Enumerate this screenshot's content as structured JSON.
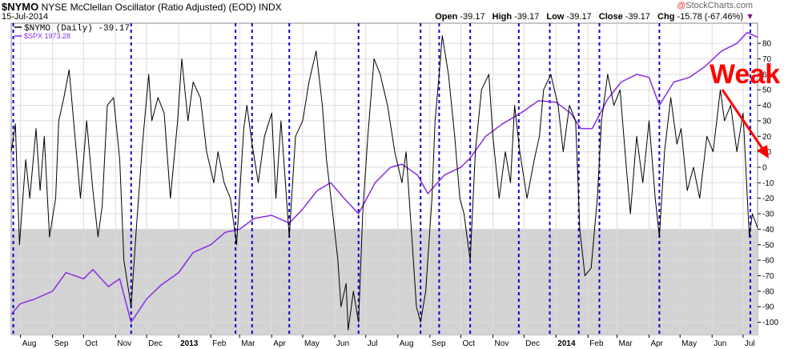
{
  "header": {
    "symbol": "$NYMO",
    "description": "NYSE McClellan Oscillator (Ratio Adjusted) (EOD)",
    "exchange": "INDX",
    "date": "15-Jul-2014",
    "open_label": "Open",
    "open": "-39.17",
    "high_label": "High",
    "high": "-39.17",
    "low_label": "Low",
    "low": "-39.17",
    "close_label": "Close",
    "close": "-39.17",
    "chg_label": "Chg",
    "chg": "-15.78 (-67.46%)",
    "watermark": "StockCharts.com",
    "watermark_prefix": "@"
  },
  "legend": {
    "nymo": "$NYMO (Daily) -39.17",
    "spx": "$SPX 1973.28"
  },
  "annotation": {
    "text": "Weak"
  },
  "colors": {
    "nymo_line": "#000000",
    "spx_line": "#8a2be2",
    "shade": "#d3d3d3",
    "cycle_marker": "#0000cd",
    "annotation": "#ff0000"
  },
  "chart_data": {
    "type": "line",
    "title": "NYSE McClellan Oscillator (Ratio Adjusted) (EOD)",
    "x_start": "2012-07-23",
    "x_end": "2014-07-15",
    "ylim": [
      -108,
      93
    ],
    "y_ticks": [
      -100,
      -90,
      -80,
      -70,
      -60,
      -50,
      -40,
      -30,
      -20,
      -10,
      0,
      10,
      20,
      30,
      40,
      50,
      60,
      70,
      80
    ],
    "shade_below": -40,
    "grid": true,
    "x_tick_labels": [
      {
        "date": "2012-08-01",
        "label": "Aug",
        "year": false
      },
      {
        "date": "2012-09-01",
        "label": "Sep",
        "year": false
      },
      {
        "date": "2012-10-01",
        "label": "Oct",
        "year": false
      },
      {
        "date": "2012-11-01",
        "label": "Nov",
        "year": false
      },
      {
        "date": "2012-12-01",
        "label": "Dec",
        "year": false
      },
      {
        "date": "2013-01-01",
        "label": "2013",
        "year": true
      },
      {
        "date": "2013-02-01",
        "label": "Feb",
        "year": false
      },
      {
        "date": "2013-03-01",
        "label": "Mar",
        "year": false
      },
      {
        "date": "2013-04-01",
        "label": "Apr",
        "year": false
      },
      {
        "date": "2013-05-01",
        "label": "May",
        "year": false
      },
      {
        "date": "2013-06-01",
        "label": "Jun",
        "year": false
      },
      {
        "date": "2013-07-01",
        "label": "Jul",
        "year": false
      },
      {
        "date": "2013-08-01",
        "label": "Aug",
        "year": false
      },
      {
        "date": "2013-09-01",
        "label": "Sep",
        "year": false
      },
      {
        "date": "2013-10-01",
        "label": "Oct",
        "year": false
      },
      {
        "date": "2013-11-01",
        "label": "Nov",
        "year": false
      },
      {
        "date": "2013-12-01",
        "label": "Dec",
        "year": false
      },
      {
        "date": "2014-01-01",
        "label": "2014",
        "year": true
      },
      {
        "date": "2014-02-01",
        "label": "Feb",
        "year": false
      },
      {
        "date": "2014-03-01",
        "label": "Mar",
        "year": false
      },
      {
        "date": "2014-04-01",
        "label": "Apr",
        "year": false
      },
      {
        "date": "2014-05-01",
        "label": "May",
        "year": false
      },
      {
        "date": "2014-06-01",
        "label": "Jun",
        "year": false
      },
      {
        "date": "2014-07-01",
        "label": "Jul",
        "year": false
      }
    ],
    "cycle_lines": [
      "2012-07-25",
      "2012-11-16",
      "2013-02-25",
      "2013-03-13",
      "2013-04-18",
      "2013-06-24",
      "2013-08-23",
      "2013-09-10",
      "2013-10-10",
      "2013-11-26",
      "2013-12-26",
      "2014-01-23",
      "2014-02-12",
      "2014-04-11",
      "2014-07-08"
    ],
    "series": [
      {
        "name": "$NYMO (Daily)",
        "axis": "left",
        "points": [
          [
            "2012-07-23",
            10
          ],
          [
            "2012-07-27",
            28
          ],
          [
            "2012-07-31",
            -50
          ],
          [
            "2012-08-06",
            5
          ],
          [
            "2012-08-10",
            -20
          ],
          [
            "2012-08-16",
            25
          ],
          [
            "2012-08-20",
            -15
          ],
          [
            "2012-08-24",
            20
          ],
          [
            "2012-08-29",
            -45
          ],
          [
            "2012-09-04",
            -20
          ],
          [
            "2012-09-07",
            30
          ],
          [
            "2012-09-12",
            45
          ],
          [
            "2012-09-17",
            63
          ],
          [
            "2012-09-24",
            10
          ],
          [
            "2012-09-28",
            -20
          ],
          [
            "2012-10-04",
            30
          ],
          [
            "2012-10-10",
            -15
          ],
          [
            "2012-10-15",
            -45
          ],
          [
            "2012-10-19",
            -25
          ],
          [
            "2012-10-24",
            40
          ],
          [
            "2012-10-30",
            45
          ],
          [
            "2012-11-05",
            5
          ],
          [
            "2012-11-09",
            -60
          ],
          [
            "2012-11-16",
            -90
          ],
          [
            "2012-11-21",
            -40
          ],
          [
            "2012-11-27",
            15
          ],
          [
            "2012-12-03",
            60
          ],
          [
            "2012-12-06",
            30
          ],
          [
            "2012-12-12",
            45
          ],
          [
            "2012-12-18",
            35
          ],
          [
            "2012-12-24",
            -20
          ],
          [
            "2012-12-31",
            30
          ],
          [
            "2013-01-04",
            70
          ],
          [
            "2013-01-10",
            30
          ],
          [
            "2013-01-15",
            55
          ],
          [
            "2013-01-22",
            45
          ],
          [
            "2013-01-28",
            10
          ],
          [
            "2013-02-04",
            -10
          ],
          [
            "2013-02-08",
            10
          ],
          [
            "2013-02-14",
            -10
          ],
          [
            "2013-02-20",
            -20
          ],
          [
            "2013-02-26",
            -50
          ],
          [
            "2013-03-05",
            25
          ],
          [
            "2013-03-08",
            40
          ],
          [
            "2013-03-13",
            15
          ],
          [
            "2013-03-19",
            -10
          ],
          [
            "2013-03-25",
            20
          ],
          [
            "2013-04-01",
            35
          ],
          [
            "2013-04-05",
            -20
          ],
          [
            "2013-04-10",
            30
          ],
          [
            "2013-04-18",
            -45
          ],
          [
            "2013-04-24",
            20
          ],
          [
            "2013-05-01",
            30
          ],
          [
            "2013-05-07",
            55
          ],
          [
            "2013-05-14",
            75
          ],
          [
            "2013-05-20",
            40
          ],
          [
            "2013-05-24",
            5
          ],
          [
            "2013-05-30",
            -30
          ],
          [
            "2013-06-04",
            -60
          ],
          [
            "2013-06-07",
            -90
          ],
          [
            "2013-06-12",
            -75
          ],
          [
            "2013-06-14",
            -105
          ],
          [
            "2013-06-19",
            -80
          ],
          [
            "2013-06-24",
            -100
          ],
          [
            "2013-06-28",
            -30
          ],
          [
            "2013-07-03",
            20
          ],
          [
            "2013-07-09",
            70
          ],
          [
            "2013-07-15",
            60
          ],
          [
            "2013-07-22",
            40
          ],
          [
            "2013-07-29",
            10
          ],
          [
            "2013-08-05",
            -10
          ],
          [
            "2013-08-09",
            10
          ],
          [
            "2013-08-15",
            -50
          ],
          [
            "2013-08-19",
            -90
          ],
          [
            "2013-08-23",
            -100
          ],
          [
            "2013-08-28",
            -80
          ],
          [
            "2013-09-03",
            -20
          ],
          [
            "2013-09-06",
            30
          ],
          [
            "2013-09-10",
            60
          ],
          [
            "2013-09-13",
            85
          ],
          [
            "2013-09-19",
            60
          ],
          [
            "2013-09-25",
            20
          ],
          [
            "2013-09-30",
            -20
          ],
          [
            "2013-10-04",
            -30
          ],
          [
            "2013-10-10",
            -60
          ],
          [
            "2013-10-15",
            10
          ],
          [
            "2013-10-21",
            50
          ],
          [
            "2013-10-28",
            60
          ],
          [
            "2013-11-01",
            20
          ],
          [
            "2013-11-07",
            -20
          ],
          [
            "2013-11-13",
            10
          ],
          [
            "2013-11-18",
            -10
          ],
          [
            "2013-11-22",
            40
          ],
          [
            "2013-11-27",
            10
          ],
          [
            "2013-12-04",
            -20
          ],
          [
            "2013-12-11",
            5
          ],
          [
            "2013-12-16",
            20
          ],
          [
            "2013-12-20",
            50
          ],
          [
            "2013-12-27",
            60
          ],
          [
            "2014-01-03",
            40
          ],
          [
            "2014-01-08",
            10
          ],
          [
            "2014-01-14",
            40
          ],
          [
            "2014-01-20",
            30
          ],
          [
            "2014-01-24",
            -40
          ],
          [
            "2014-01-29",
            -70
          ],
          [
            "2014-02-04",
            -65
          ],
          [
            "2014-02-10",
            -20
          ],
          [
            "2014-02-14",
            30
          ],
          [
            "2014-02-20",
            60
          ],
          [
            "2014-02-26",
            40
          ],
          [
            "2014-03-04",
            50
          ],
          [
            "2014-03-10",
            0
          ],
          [
            "2014-03-14",
            -30
          ],
          [
            "2014-03-20",
            20
          ],
          [
            "2014-03-26",
            -10
          ],
          [
            "2014-04-01",
            30
          ],
          [
            "2014-04-07",
            -20
          ],
          [
            "2014-04-11",
            -45
          ],
          [
            "2014-04-16",
            10
          ],
          [
            "2014-04-22",
            45
          ],
          [
            "2014-04-28",
            15
          ],
          [
            "2014-05-02",
            25
          ],
          [
            "2014-05-08",
            -15
          ],
          [
            "2014-05-14",
            0
          ],
          [
            "2014-05-20",
            -20
          ],
          [
            "2014-05-27",
            20
          ],
          [
            "2014-06-02",
            10
          ],
          [
            "2014-06-09",
            50
          ],
          [
            "2014-06-13",
            30
          ],
          [
            "2014-06-19",
            40
          ],
          [
            "2014-06-25",
            10
          ],
          [
            "2014-07-01",
            35
          ],
          [
            "2014-07-07",
            -45
          ],
          [
            "2014-07-10",
            -30
          ],
          [
            "2014-07-15",
            -39.17
          ]
        ]
      },
      {
        "name": "$SPX",
        "axis": "right",
        "points": [
          [
            "2012-07-23",
            -95
          ],
          [
            "2012-08-01",
            -88
          ],
          [
            "2012-08-15",
            -85
          ],
          [
            "2012-09-01",
            -80
          ],
          [
            "2012-09-14",
            -68
          ],
          [
            "2012-10-01",
            -72
          ],
          [
            "2012-10-10",
            -66
          ],
          [
            "2012-10-25",
            -77
          ],
          [
            "2012-11-05",
            -72
          ],
          [
            "2012-11-16",
            -100
          ],
          [
            "2012-12-01",
            -85
          ],
          [
            "2012-12-15",
            -76
          ],
          [
            "2013-01-01",
            -68
          ],
          [
            "2013-01-15",
            -55
          ],
          [
            "2013-02-01",
            -50
          ],
          [
            "2013-02-15",
            -42
          ],
          [
            "2013-03-01",
            -40
          ],
          [
            "2013-03-15",
            -33
          ],
          [
            "2013-04-01",
            -31
          ],
          [
            "2013-04-18",
            -36
          ],
          [
            "2013-05-01",
            -27
          ],
          [
            "2013-05-15",
            -15
          ],
          [
            "2013-05-28",
            -10
          ],
          [
            "2013-06-10",
            -20
          ],
          [
            "2013-06-24",
            -30
          ],
          [
            "2013-07-10",
            -10
          ],
          [
            "2013-07-25",
            0
          ],
          [
            "2013-08-05",
            2
          ],
          [
            "2013-08-20",
            -5
          ],
          [
            "2013-08-30",
            -17
          ],
          [
            "2013-09-15",
            -5
          ],
          [
            "2013-10-01",
            0
          ],
          [
            "2013-10-10",
            6
          ],
          [
            "2013-10-25",
            20
          ],
          [
            "2013-11-10",
            28
          ],
          [
            "2013-11-28",
            35
          ],
          [
            "2013-12-15",
            43
          ],
          [
            "2014-01-01",
            42
          ],
          [
            "2014-01-15",
            35
          ],
          [
            "2014-01-25",
            25
          ],
          [
            "2014-02-05",
            25
          ],
          [
            "2014-02-20",
            44
          ],
          [
            "2014-03-05",
            55
          ],
          [
            "2014-03-20",
            60
          ],
          [
            "2014-04-01",
            58
          ],
          [
            "2014-04-11",
            40
          ],
          [
            "2014-04-25",
            55
          ],
          [
            "2014-05-10",
            58
          ],
          [
            "2014-05-25",
            65
          ],
          [
            "2014-06-10",
            75
          ],
          [
            "2014-06-25",
            80
          ],
          [
            "2014-07-05",
            87
          ],
          [
            "2014-07-15",
            84
          ]
        ]
      }
    ]
  }
}
